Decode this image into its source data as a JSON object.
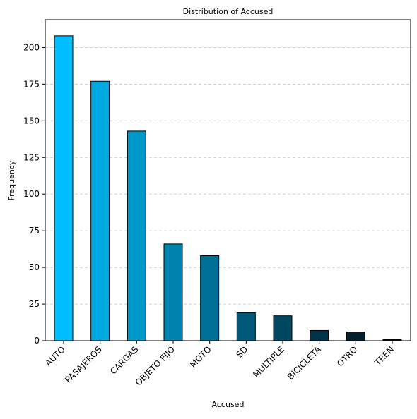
{
  "chart_data": {
    "type": "bar",
    "title": "Distribution of Accused",
    "xlabel": "Accused",
    "ylabel": "Frequency",
    "categories": [
      "AUTO",
      "PASAJEROS",
      "CARGAS",
      "OBJETO FIJO",
      "MOTO",
      "SD",
      "MULTIPLE",
      "BICICLETA",
      "OTRO",
      "TREN"
    ],
    "values": [
      208,
      177,
      143,
      66,
      58,
      19,
      17,
      7,
      6,
      1
    ],
    "colors": [
      "#00bfff",
      "#00a9e2",
      "#0097ca",
      "#0083af",
      "#006f95",
      "#00597a",
      "#004761",
      "#003448",
      "#00202e",
      "#000a14"
    ],
    "ylim": [
      0,
      219
    ],
    "yticks": [
      0,
      25,
      50,
      75,
      100,
      125,
      150,
      175,
      200
    ],
    "grid": "y-dashed",
    "legend": "none"
  }
}
